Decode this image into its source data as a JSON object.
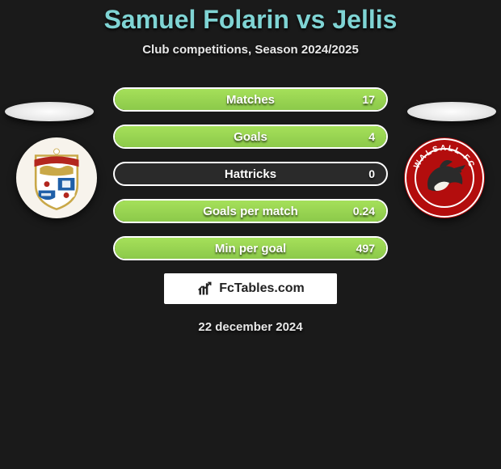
{
  "title": "Samuel Folarin vs Jellis",
  "subtitle": "Club competitions, Season 2024/2025",
  "title_color": "#7fd4d4",
  "fill_color_top": "#a5e05a",
  "fill_color_bottom": "#8cc94a",
  "border_color": "#ffffff",
  "background_color": "#1a1a1a",
  "stats": [
    {
      "label": "Matches",
      "value": "17",
      "fill_pct": 100
    },
    {
      "label": "Goals",
      "value": "4",
      "fill_pct": 100
    },
    {
      "label": "Hattricks",
      "value": "0",
      "fill_pct": 0
    },
    {
      "label": "Goals per match",
      "value": "0.24",
      "fill_pct": 100
    },
    {
      "label": "Min per goal",
      "value": "497",
      "fill_pct": 100
    }
  ],
  "watermark": "FcTables.com",
  "date": "22 december 2024",
  "crests": {
    "left": {
      "name": "harrogate-town-crest",
      "bg": "#f7f3ec",
      "shield_stroke": "#c9a848",
      "banner_fill": "#b3261e",
      "lion_fill": "#c9a848",
      "q_top_left": "#ffffff",
      "q_bottom_right": "#ffffff",
      "q_top_right": "#1f5fa8",
      "q_bottom_left": "#1f5fa8"
    },
    "right": {
      "name": "walsall-fc-crest",
      "bg": "#b30d0d",
      "ring_outer": "#ffffff",
      "ring_inner": "#b30d0d",
      "bird_body": "#2b2b2b",
      "bird_belly": "#f4f1e9",
      "bird_beak": "#b30d0d",
      "text": "WALSALL FC",
      "text_color": "#ffffff"
    }
  }
}
